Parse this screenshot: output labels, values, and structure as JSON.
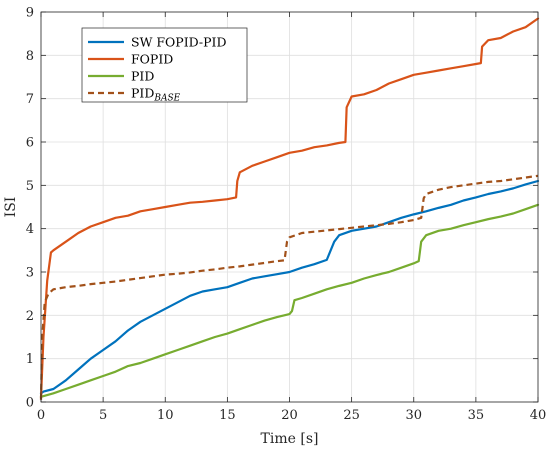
{
  "chart_data": {
    "type": "line",
    "xlabel": "Time [s]",
    "ylabel": "ISI",
    "xlim": [
      0,
      40
    ],
    "ylim": [
      0,
      9
    ],
    "x_ticks": [
      "0",
      "5",
      "10",
      "15",
      "20",
      "25",
      "30",
      "35",
      "40"
    ],
    "y_ticks": [
      "0",
      "1",
      "2",
      "3",
      "4",
      "5",
      "6",
      "7",
      "8",
      "9"
    ],
    "grid": true,
    "legend_position": "top-left",
    "series": [
      {
        "name": "SW FOPID-PID",
        "color": "#0072BD",
        "style": "solid",
        "points": [
          [
            0,
            0.2
          ],
          [
            0.2,
            0.24
          ],
          [
            1,
            0.3
          ],
          [
            2,
            0.5
          ],
          [
            3,
            0.75
          ],
          [
            4,
            1.0
          ],
          [
            5,
            1.2
          ],
          [
            6,
            1.4
          ],
          [
            7,
            1.65
          ],
          [
            8,
            1.85
          ],
          [
            9,
            2.0
          ],
          [
            10,
            2.15
          ],
          [
            11,
            2.3
          ],
          [
            12,
            2.45
          ],
          [
            13,
            2.55
          ],
          [
            14,
            2.6
          ],
          [
            15,
            2.65
          ],
          [
            16,
            2.75
          ],
          [
            17,
            2.85
          ],
          [
            18,
            2.9
          ],
          [
            19,
            2.95
          ],
          [
            20,
            3.0
          ],
          [
            21,
            3.1
          ],
          [
            22,
            3.18
          ],
          [
            23,
            3.28
          ],
          [
            23.6,
            3.7
          ],
          [
            24,
            3.85
          ],
          [
            25,
            3.95
          ],
          [
            26,
            4.0
          ],
          [
            27,
            4.05
          ],
          [
            28,
            4.15
          ],
          [
            29,
            4.25
          ],
          [
            30,
            4.33
          ],
          [
            31,
            4.4
          ],
          [
            32,
            4.48
          ],
          [
            33,
            4.55
          ],
          [
            34,
            4.65
          ],
          [
            35,
            4.72
          ],
          [
            36,
            4.8
          ],
          [
            37,
            4.86
          ],
          [
            38,
            4.93
          ],
          [
            39,
            5.02
          ],
          [
            40,
            5.1
          ]
        ]
      },
      {
        "name": "FOPID",
        "color": "#D95319",
        "style": "solid",
        "points": [
          [
            0,
            0.1
          ],
          [
            0.2,
            1.5
          ],
          [
            0.5,
            2.8
          ],
          [
            0.8,
            3.45
          ],
          [
            1,
            3.5
          ],
          [
            2,
            3.7
          ],
          [
            3,
            3.9
          ],
          [
            4,
            4.05
          ],
          [
            5,
            4.15
          ],
          [
            6,
            4.25
          ],
          [
            7,
            4.3
          ],
          [
            8,
            4.4
          ],
          [
            9,
            4.45
          ],
          [
            10,
            4.5
          ],
          [
            11,
            4.55
          ],
          [
            12,
            4.6
          ],
          [
            13,
            4.62
          ],
          [
            14,
            4.65
          ],
          [
            15,
            4.68
          ],
          [
            15.7,
            4.72
          ],
          [
            15.8,
            5.1
          ],
          [
            16,
            5.3
          ],
          [
            17,
            5.45
          ],
          [
            18,
            5.55
          ],
          [
            19,
            5.65
          ],
          [
            20,
            5.75
          ],
          [
            21,
            5.8
          ],
          [
            22,
            5.88
          ],
          [
            23,
            5.92
          ],
          [
            24,
            5.98
          ],
          [
            24.5,
            6.0
          ],
          [
            24.6,
            6.8
          ],
          [
            25,
            7.05
          ],
          [
            26,
            7.1
          ],
          [
            27,
            7.2
          ],
          [
            28,
            7.35
          ],
          [
            29,
            7.45
          ],
          [
            30,
            7.55
          ],
          [
            31,
            7.6
          ],
          [
            32,
            7.65
          ],
          [
            33,
            7.7
          ],
          [
            34,
            7.75
          ],
          [
            35,
            7.8
          ],
          [
            35.4,
            7.82
          ],
          [
            35.5,
            8.2
          ],
          [
            36,
            8.35
          ],
          [
            37,
            8.4
          ],
          [
            38,
            8.55
          ],
          [
            39,
            8.65
          ],
          [
            40,
            8.85
          ]
        ]
      },
      {
        "name": "PID",
        "color": "#77AC30",
        "style": "solid",
        "points": [
          [
            0,
            0.12
          ],
          [
            1,
            0.2
          ],
          [
            2,
            0.3
          ],
          [
            3,
            0.4
          ],
          [
            4,
            0.5
          ],
          [
            5,
            0.6
          ],
          [
            6,
            0.7
          ],
          [
            7,
            0.83
          ],
          [
            8,
            0.9
          ],
          [
            9,
            1.0
          ],
          [
            10,
            1.1
          ],
          [
            11,
            1.2
          ],
          [
            12,
            1.3
          ],
          [
            13,
            1.4
          ],
          [
            14,
            1.5
          ],
          [
            15,
            1.58
          ],
          [
            16,
            1.68
          ],
          [
            17,
            1.78
          ],
          [
            18,
            1.88
          ],
          [
            19,
            1.96
          ],
          [
            20,
            2.03
          ],
          [
            20.2,
            2.1
          ],
          [
            20.4,
            2.35
          ],
          [
            21,
            2.4
          ],
          [
            22,
            2.5
          ],
          [
            23,
            2.6
          ],
          [
            24,
            2.68
          ],
          [
            25,
            2.75
          ],
          [
            26,
            2.85
          ],
          [
            27,
            2.93
          ],
          [
            28,
            3.0
          ],
          [
            29,
            3.1
          ],
          [
            30,
            3.2
          ],
          [
            30.4,
            3.25
          ],
          [
            30.6,
            3.7
          ],
          [
            31,
            3.85
          ],
          [
            32,
            3.95
          ],
          [
            33,
            4.0
          ],
          [
            34,
            4.08
          ],
          [
            35,
            4.15
          ],
          [
            36,
            4.22
          ],
          [
            37,
            4.28
          ],
          [
            38,
            4.35
          ],
          [
            39,
            4.45
          ],
          [
            40,
            4.55
          ]
        ]
      },
      {
        "name": "PID",
        "name_sub": "BASE",
        "color": "#A2511A",
        "style": "dashed",
        "points": [
          [
            0,
            0.05
          ],
          [
            0.1,
            1.5
          ],
          [
            0.3,
            2.3
          ],
          [
            0.6,
            2.5
          ],
          [
            1,
            2.6
          ],
          [
            2,
            2.65
          ],
          [
            3,
            2.68
          ],
          [
            4,
            2.72
          ],
          [
            5,
            2.75
          ],
          [
            6,
            2.78
          ],
          [
            7,
            2.82
          ],
          [
            8,
            2.86
          ],
          [
            9,
            2.9
          ],
          [
            10,
            2.94
          ],
          [
            11,
            2.96
          ],
          [
            12,
            2.99
          ],
          [
            13,
            3.03
          ],
          [
            14,
            3.06
          ],
          [
            15,
            3.1
          ],
          [
            16,
            3.13
          ],
          [
            17,
            3.17
          ],
          [
            18,
            3.21
          ],
          [
            19,
            3.25
          ],
          [
            19.6,
            3.27
          ],
          [
            19.8,
            3.7
          ],
          [
            20,
            3.8
          ],
          [
            21,
            3.9
          ],
          [
            22,
            3.93
          ],
          [
            23,
            3.96
          ],
          [
            24,
            3.99
          ],
          [
            25,
            4.02
          ],
          [
            26,
            4.05
          ],
          [
            27,
            4.08
          ],
          [
            28,
            4.11
          ],
          [
            29,
            4.15
          ],
          [
            30,
            4.2
          ],
          [
            30.6,
            4.25
          ],
          [
            30.8,
            4.7
          ],
          [
            31,
            4.8
          ],
          [
            32,
            4.9
          ],
          [
            33,
            4.96
          ],
          [
            34,
            5.0
          ],
          [
            35,
            5.04
          ],
          [
            36,
            5.08
          ],
          [
            37,
            5.1
          ],
          [
            38,
            5.14
          ],
          [
            39,
            5.18
          ],
          [
            40,
            5.22
          ]
        ]
      }
    ]
  }
}
